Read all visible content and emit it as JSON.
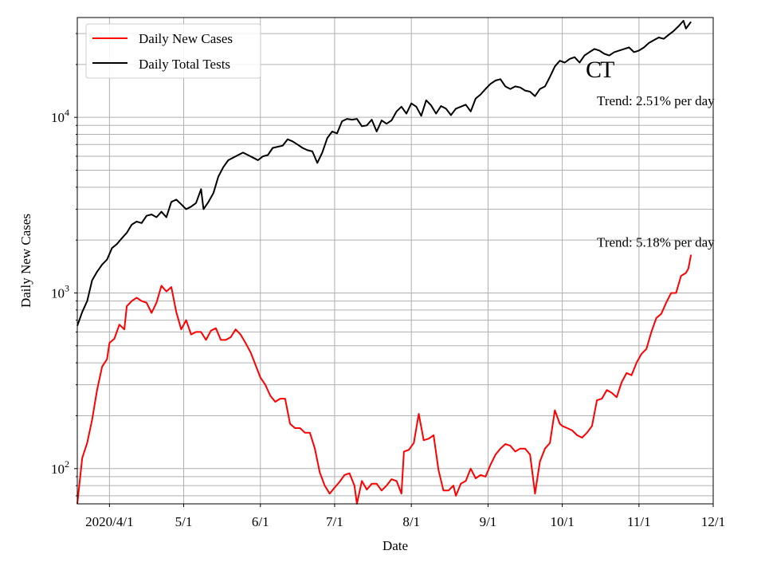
{
  "chart_data": {
    "type": "line",
    "title": "",
    "xlabel": "Date",
    "ylabel": "Daily New Cases",
    "yscale": "log",
    "ylim": [
      63,
      37000
    ],
    "xlim": [
      "2020-03-19",
      "2020-12-01"
    ],
    "grid": true,
    "legend_position": "top-left",
    "x_ticks": [
      {
        "date": "2020-04-01",
        "label": "2020/4/1"
      },
      {
        "date": "2020-05-01",
        "label": "5/1"
      },
      {
        "date": "2020-06-01",
        "label": "6/1"
      },
      {
        "date": "2020-07-01",
        "label": "7/1"
      },
      {
        "date": "2020-08-01",
        "label": "8/1"
      },
      {
        "date": "2020-09-01",
        "label": "9/1"
      },
      {
        "date": "2020-10-01",
        "label": "10/1"
      },
      {
        "date": "2020-11-01",
        "label": "11/1"
      },
      {
        "date": "2020-12-01",
        "label": "12/1"
      }
    ],
    "y_ticks": [
      {
        "value": 100,
        "base": "10",
        "exp": "2"
      },
      {
        "value": 1000,
        "base": "10",
        "exp": "3"
      },
      {
        "value": 10000,
        "base": "10",
        "exp": "4"
      }
    ],
    "series": [
      {
        "name": "Daily New Cases",
        "color": "#ff0000",
        "points": [
          [
            "2020-03-19",
            63
          ],
          [
            "2020-03-21",
            115
          ],
          [
            "2020-03-23",
            140
          ],
          [
            "2020-03-25",
            190
          ],
          [
            "2020-03-27",
            280
          ],
          [
            "2020-03-29",
            380
          ],
          [
            "2020-03-31",
            420
          ],
          [
            "2020-04-01",
            520
          ],
          [
            "2020-04-03",
            550
          ],
          [
            "2020-04-05",
            660
          ],
          [
            "2020-04-07",
            620
          ],
          [
            "2020-04-08",
            840
          ],
          [
            "2020-04-10",
            900
          ],
          [
            "2020-04-12",
            940
          ],
          [
            "2020-04-14",
            900
          ],
          [
            "2020-04-16",
            880
          ],
          [
            "2020-04-18",
            770
          ],
          [
            "2020-04-20",
            880
          ],
          [
            "2020-04-22",
            1100
          ],
          [
            "2020-04-24",
            1020
          ],
          [
            "2020-04-26",
            1080
          ],
          [
            "2020-04-28",
            780
          ],
          [
            "2020-04-30",
            620
          ],
          [
            "2020-05-02",
            700
          ],
          [
            "2020-05-04",
            580
          ],
          [
            "2020-05-06",
            600
          ],
          [
            "2020-05-08",
            600
          ],
          [
            "2020-05-10",
            540
          ],
          [
            "2020-05-12",
            610
          ],
          [
            "2020-05-14",
            630
          ],
          [
            "2020-05-16",
            540
          ],
          [
            "2020-05-18",
            540
          ],
          [
            "2020-05-20",
            560
          ],
          [
            "2020-05-22",
            620
          ],
          [
            "2020-05-24",
            580
          ],
          [
            "2020-05-26",
            520
          ],
          [
            "2020-05-28",
            460
          ],
          [
            "2020-05-30",
            390
          ],
          [
            "2020-06-01",
            330
          ],
          [
            "2020-06-03",
            300
          ],
          [
            "2020-06-05",
            260
          ],
          [
            "2020-06-07",
            240
          ],
          [
            "2020-06-09",
            250
          ],
          [
            "2020-06-11",
            250
          ],
          [
            "2020-06-13",
            180
          ],
          [
            "2020-06-15",
            170
          ],
          [
            "2020-06-17",
            170
          ],
          [
            "2020-06-19",
            160
          ],
          [
            "2020-06-21",
            160
          ],
          [
            "2020-06-23",
            130
          ],
          [
            "2020-06-25",
            95
          ],
          [
            "2020-06-27",
            80
          ],
          [
            "2020-06-29",
            72
          ],
          [
            "2020-07-01",
            78
          ],
          [
            "2020-07-03",
            84
          ],
          [
            "2020-07-05",
            92
          ],
          [
            "2020-07-07",
            94
          ],
          [
            "2020-07-09",
            80
          ],
          [
            "2020-07-10",
            63
          ],
          [
            "2020-07-12",
            85
          ],
          [
            "2020-07-14",
            76
          ],
          [
            "2020-07-16",
            82
          ],
          [
            "2020-07-18",
            82
          ],
          [
            "2020-07-20",
            75
          ],
          [
            "2020-07-22",
            80
          ],
          [
            "2020-07-24",
            87
          ],
          [
            "2020-07-26",
            85
          ],
          [
            "2020-07-28",
            72
          ],
          [
            "2020-07-29",
            125
          ],
          [
            "2020-07-31",
            128
          ],
          [
            "2020-08-02",
            140
          ],
          [
            "2020-08-04",
            205
          ],
          [
            "2020-08-06",
            145
          ],
          [
            "2020-08-08",
            148
          ],
          [
            "2020-08-10",
            155
          ],
          [
            "2020-08-12",
            98
          ],
          [
            "2020-08-14",
            75
          ],
          [
            "2020-08-16",
            75
          ],
          [
            "2020-08-18",
            80
          ],
          [
            "2020-08-19",
            70
          ],
          [
            "2020-08-21",
            82
          ],
          [
            "2020-08-23",
            85
          ],
          [
            "2020-08-25",
            100
          ],
          [
            "2020-08-27",
            88
          ],
          [
            "2020-08-29",
            92
          ],
          [
            "2020-08-31",
            90
          ],
          [
            "2020-09-02",
            105
          ],
          [
            "2020-09-04",
            120
          ],
          [
            "2020-09-06",
            130
          ],
          [
            "2020-09-08",
            138
          ],
          [
            "2020-09-10",
            135
          ],
          [
            "2020-09-12",
            125
          ],
          [
            "2020-09-14",
            130
          ],
          [
            "2020-09-16",
            130
          ],
          [
            "2020-09-18",
            120
          ],
          [
            "2020-09-20",
            72
          ],
          [
            "2020-09-22",
            110
          ],
          [
            "2020-09-24",
            130
          ],
          [
            "2020-09-26",
            140
          ],
          [
            "2020-09-28",
            215
          ],
          [
            "2020-09-30",
            180
          ],
          [
            "2020-10-01",
            175
          ],
          [
            "2020-10-03",
            170
          ],
          [
            "2020-10-05",
            165
          ],
          [
            "2020-10-07",
            155
          ],
          [
            "2020-10-09",
            150
          ],
          [
            "2020-10-11",
            160
          ],
          [
            "2020-10-13",
            175
          ],
          [
            "2020-10-15",
            245
          ],
          [
            "2020-10-17",
            250
          ],
          [
            "2020-10-19",
            280
          ],
          [
            "2020-10-21",
            270
          ],
          [
            "2020-10-23",
            255
          ],
          [
            "2020-10-25",
            310
          ],
          [
            "2020-10-27",
            350
          ],
          [
            "2020-10-29",
            340
          ],
          [
            "2020-10-31",
            400
          ],
          [
            "2020-11-02",
            450
          ],
          [
            "2020-11-04",
            480
          ],
          [
            "2020-11-06",
            600
          ],
          [
            "2020-11-08",
            720
          ],
          [
            "2020-11-10",
            760
          ],
          [
            "2020-11-12",
            880
          ],
          [
            "2020-11-14",
            1000
          ],
          [
            "2020-11-16",
            1000
          ],
          [
            "2020-11-18",
            1250
          ],
          [
            "2020-11-20",
            1300
          ],
          [
            "2020-11-21",
            1380
          ],
          [
            "2020-11-22",
            1650
          ]
        ]
      },
      {
        "name": "Daily Total Tests",
        "color": "#000000",
        "points": [
          [
            "2020-03-19",
            650
          ],
          [
            "2020-03-21",
            780
          ],
          [
            "2020-03-23",
            900
          ],
          [
            "2020-03-25",
            1180
          ],
          [
            "2020-03-27",
            1320
          ],
          [
            "2020-03-29",
            1450
          ],
          [
            "2020-03-31",
            1550
          ],
          [
            "2020-04-02",
            1800
          ],
          [
            "2020-04-04",
            1900
          ],
          [
            "2020-04-06",
            2050
          ],
          [
            "2020-04-08",
            2200
          ],
          [
            "2020-04-10",
            2450
          ],
          [
            "2020-04-12",
            2550
          ],
          [
            "2020-04-14",
            2500
          ],
          [
            "2020-04-16",
            2750
          ],
          [
            "2020-04-18",
            2800
          ],
          [
            "2020-04-20",
            2700
          ],
          [
            "2020-04-22",
            2900
          ],
          [
            "2020-04-24",
            2700
          ],
          [
            "2020-04-26",
            3300
          ],
          [
            "2020-04-28",
            3400
          ],
          [
            "2020-04-30",
            3200
          ],
          [
            "2020-05-02",
            3000
          ],
          [
            "2020-05-04",
            3100
          ],
          [
            "2020-05-06",
            3250
          ],
          [
            "2020-05-08",
            3900
          ],
          [
            "2020-05-09",
            3000
          ],
          [
            "2020-05-11",
            3300
          ],
          [
            "2020-05-13",
            3700
          ],
          [
            "2020-05-15",
            4600
          ],
          [
            "2020-05-17",
            5200
          ],
          [
            "2020-05-19",
            5700
          ],
          [
            "2020-05-21",
            5900
          ],
          [
            "2020-05-23",
            6100
          ],
          [
            "2020-05-25",
            6300
          ],
          [
            "2020-05-27",
            6100
          ],
          [
            "2020-05-29",
            5900
          ],
          [
            "2020-05-31",
            5700
          ],
          [
            "2020-06-02",
            6000
          ],
          [
            "2020-06-04",
            6100
          ],
          [
            "2020-06-06",
            6700
          ],
          [
            "2020-06-08",
            6800
          ],
          [
            "2020-06-10",
            6900
          ],
          [
            "2020-06-12",
            7500
          ],
          [
            "2020-06-14",
            7300
          ],
          [
            "2020-06-16",
            7000
          ],
          [
            "2020-06-18",
            6700
          ],
          [
            "2020-06-20",
            6500
          ],
          [
            "2020-06-22",
            6400
          ],
          [
            "2020-06-24",
            5500
          ],
          [
            "2020-06-26",
            6300
          ],
          [
            "2020-06-28",
            7600
          ],
          [
            "2020-06-30",
            8300
          ],
          [
            "2020-07-02",
            8100
          ],
          [
            "2020-07-04",
            9500
          ],
          [
            "2020-07-06",
            9800
          ],
          [
            "2020-07-08",
            9700
          ],
          [
            "2020-07-10",
            9800
          ],
          [
            "2020-07-12",
            8900
          ],
          [
            "2020-07-14",
            9000
          ],
          [
            "2020-07-16",
            9700
          ],
          [
            "2020-07-18",
            8300
          ],
          [
            "2020-07-20",
            9600
          ],
          [
            "2020-07-22",
            9200
          ],
          [
            "2020-07-24",
            9600
          ],
          [
            "2020-07-26",
            10800
          ],
          [
            "2020-07-28",
            11500
          ],
          [
            "2020-07-30",
            10500
          ],
          [
            "2020-08-01",
            12000
          ],
          [
            "2020-08-03",
            11500
          ],
          [
            "2020-08-05",
            10200
          ],
          [
            "2020-08-07",
            12500
          ],
          [
            "2020-08-09",
            11700
          ],
          [
            "2020-08-11",
            10500
          ],
          [
            "2020-08-13",
            11600
          ],
          [
            "2020-08-15",
            11200
          ],
          [
            "2020-08-17",
            10300
          ],
          [
            "2020-08-19",
            11200
          ],
          [
            "2020-08-21",
            11500
          ],
          [
            "2020-08-23",
            11800
          ],
          [
            "2020-08-25",
            10800
          ],
          [
            "2020-08-27",
            12800
          ],
          [
            "2020-08-29",
            13500
          ],
          [
            "2020-08-31",
            14500
          ],
          [
            "2020-09-02",
            15500
          ],
          [
            "2020-09-04",
            16200
          ],
          [
            "2020-09-06",
            16500
          ],
          [
            "2020-09-08",
            15000
          ],
          [
            "2020-09-10",
            14500
          ],
          [
            "2020-09-12",
            15000
          ],
          [
            "2020-09-14",
            14800
          ],
          [
            "2020-09-16",
            14200
          ],
          [
            "2020-09-18",
            14000
          ],
          [
            "2020-09-20",
            13200
          ],
          [
            "2020-09-22",
            14500
          ],
          [
            "2020-09-24",
            15000
          ],
          [
            "2020-09-26",
            17000
          ],
          [
            "2020-09-28",
            19500
          ],
          [
            "2020-09-30",
            21000
          ],
          [
            "2020-10-02",
            20500
          ],
          [
            "2020-10-04",
            21500
          ],
          [
            "2020-10-06",
            22000
          ],
          [
            "2020-10-08",
            20500
          ],
          [
            "2020-10-10",
            22500
          ],
          [
            "2020-10-12",
            23500
          ],
          [
            "2020-10-14",
            24500
          ],
          [
            "2020-10-16",
            24000
          ],
          [
            "2020-10-18",
            23000
          ],
          [
            "2020-10-20",
            22500
          ],
          [
            "2020-10-22",
            23500
          ],
          [
            "2020-10-24",
            24000
          ],
          [
            "2020-10-26",
            24500
          ],
          [
            "2020-10-28",
            25000
          ],
          [
            "2020-10-30",
            23500
          ],
          [
            "2020-11-01",
            24000
          ],
          [
            "2020-11-03",
            25000
          ],
          [
            "2020-11-05",
            26500
          ],
          [
            "2020-11-07",
            27500
          ],
          [
            "2020-11-09",
            28500
          ],
          [
            "2020-11-11",
            28000
          ],
          [
            "2020-11-13",
            29500
          ],
          [
            "2020-11-15",
            31000
          ],
          [
            "2020-11-17",
            33000
          ],
          [
            "2020-11-19",
            35500
          ],
          [
            "2020-11-20",
            32000
          ],
          [
            "2020-11-22",
            35000
          ]
        ]
      }
    ],
    "annotations": [
      {
        "text": "CT",
        "target_date": "2020-10-16",
        "target_value": 19000
      },
      {
        "text": "Trend: 2.51% per day",
        "target_date": "2020-10-15",
        "target_value": 12500
      },
      {
        "text": "Trend: 5.18% per day",
        "target_date": "2020-10-15",
        "target_value": 1950
      }
    ]
  }
}
